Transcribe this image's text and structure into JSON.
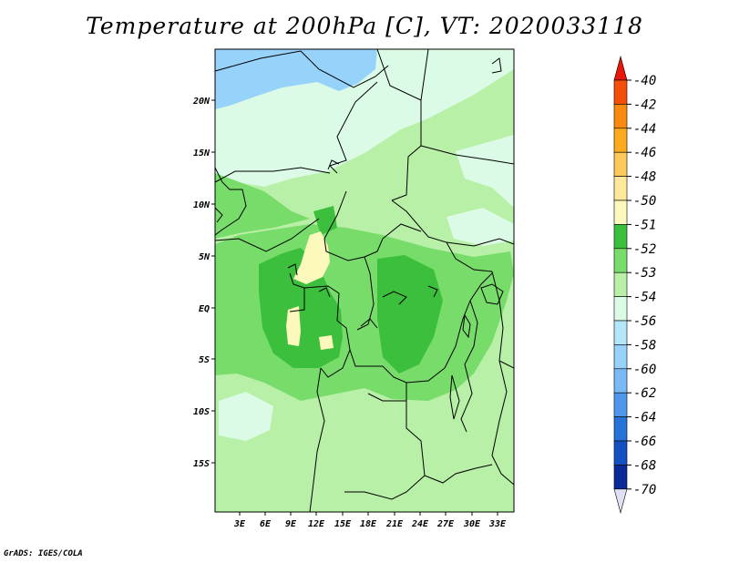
{
  "title": "Temperature at 200hPa [C], VT: 2020033118",
  "credit": "GrADS: IGES/COLA",
  "map": {
    "type": "filled contour map",
    "lon_labels": [
      "3E",
      "6E",
      "9E",
      "12E",
      "15E",
      "18E",
      "21E",
      "24E",
      "27E",
      "30E",
      "33E"
    ],
    "lat_labels": [
      "20N",
      "15N",
      "10N",
      "5N",
      "EQ",
      "5S",
      "10S",
      "15S"
    ],
    "lon_range": [
      0,
      35
    ],
    "lat_range": [
      -20,
      25
    ]
  },
  "colorbar": {
    "labels": [
      "-40",
      "-42",
      "-44",
      "-46",
      "-48",
      "-50",
      "-51",
      "-52",
      "-53",
      "-54",
      "-56",
      "-58",
      "-60",
      "-62",
      "-64",
      "-66",
      "-68",
      "-70"
    ],
    "colors": [
      "#e8170a",
      "#f54d0a",
      "#f98a0f",
      "#fcaa1e",
      "#fcc95a",
      "#fde89b",
      "#fdf8bb",
      "#3cbf3c",
      "#78dc6a",
      "#b7f0a6",
      "#dbfbe6",
      "#b4e6fa",
      "#96d2fa",
      "#78b9f6",
      "#5097ec",
      "#2873d7",
      "#1450c4",
      "#0b2997",
      "#060f6a"
    ]
  },
  "fields": {
    "colors": {
      "n54": "#dbfbe6",
      "n53": "#b7f0a6",
      "n52": "#78dc6a",
      "n51": "#3cbf3c",
      "n50": "#fdf8bb",
      "n56": "#96d2fa"
    }
  }
}
